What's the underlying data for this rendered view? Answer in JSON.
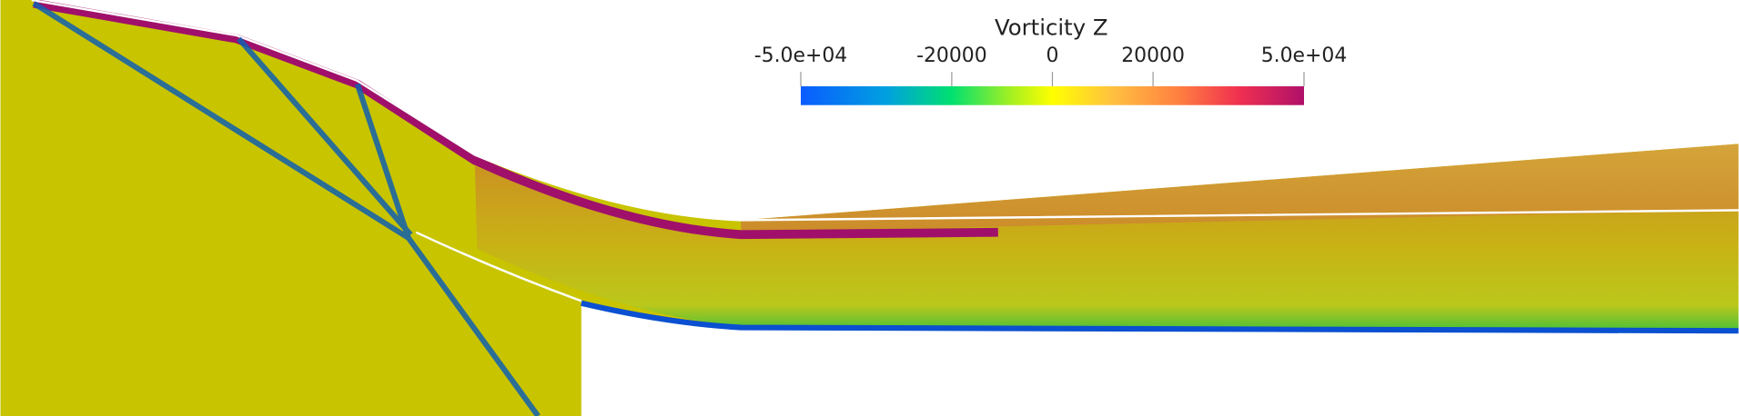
{
  "colorbar": {
    "title": "Vorticity Z",
    "range": [
      -50000,
      50000
    ],
    "ticks": [
      {
        "value": -50000,
        "label": "-5.0e+04"
      },
      -20000,
      0,
      20000,
      {
        "value": 50000,
        "label": "5.0e+04"
      }
    ]
  }
}
